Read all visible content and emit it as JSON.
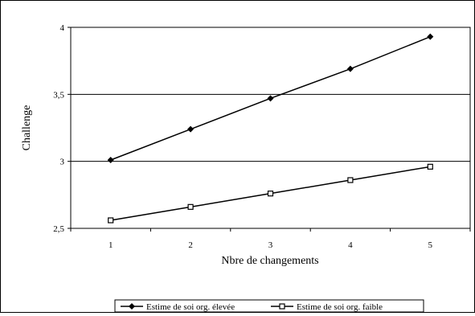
{
  "chart_data": {
    "type": "line",
    "title": "",
    "xlabel": "Nbre de changements",
    "ylabel": "Challenge",
    "x": [
      1,
      2,
      3,
      4,
      5
    ],
    "x_tick_labels": [
      "1",
      "2",
      "3",
      "4",
      "5"
    ],
    "ylim": [
      2.5,
      4
    ],
    "y_ticks": [
      2.5,
      3,
      3.5,
      4
    ],
    "y_tick_labels": [
      "2,5",
      "3",
      "3,5",
      "4"
    ],
    "grid": "horizontal",
    "legend_position": "bottom",
    "series": [
      {
        "name": "Estime de soi org. élevée",
        "marker": "diamond",
        "values": [
          3.01,
          3.24,
          3.47,
          3.69,
          3.93
        ]
      },
      {
        "name": "Estime de soi org. faible",
        "marker": "square-open",
        "values": [
          2.56,
          2.66,
          2.76,
          2.86,
          2.96
        ]
      }
    ],
    "colors": {
      "line": "#000000",
      "background": "#ffffff",
      "grid": "#000000"
    }
  }
}
